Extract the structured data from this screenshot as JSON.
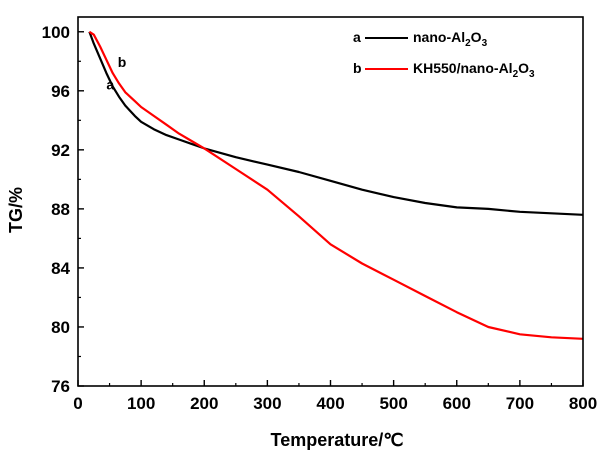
{
  "chart_data": {
    "type": "line",
    "xlabel": "Temperature/℃",
    "ylabel": "TG/%",
    "xlim": [
      0,
      800
    ],
    "ylim": [
      76,
      101
    ],
    "xticks": [
      "0",
      "100",
      "200",
      "300",
      "400",
      "500",
      "600",
      "700",
      "800"
    ],
    "yticks": [
      "76",
      "80",
      "84",
      "88",
      "92",
      "96",
      "100"
    ],
    "grid": false,
    "legend_position": "top-right",
    "series": [
      {
        "name": "nano-Al2O3",
        "legend_marker": "a",
        "legend_text": "nano-Al",
        "legend_sub1": "2",
        "legend_mid": "O",
        "legend_sub2": "3",
        "color": "#000000",
        "x": [
          18,
          25,
          35,
          45,
          55,
          65,
          75,
          90,
          100,
          120,
          140,
          160,
          180,
          200,
          250,
          300,
          350,
          400,
          450,
          500,
          550,
          600,
          650,
          700,
          750,
          800
        ],
        "y": [
          100,
          99.2,
          98.2,
          97.2,
          96.3,
          95.6,
          95.0,
          94.3,
          93.9,
          93.4,
          93.0,
          92.7,
          92.4,
          92.1,
          91.5,
          91.0,
          90.5,
          89.9,
          89.3,
          88.8,
          88.4,
          88.1,
          88.0,
          87.8,
          87.7,
          87.6
        ]
      },
      {
        "name": "KH550/nano-Al2O3",
        "legend_marker": "b",
        "legend_text": "KH550/nano-Al",
        "legend_sub1": "2",
        "legend_mid": "O",
        "legend_sub2": "3",
        "color": "#ff0000",
        "x": [
          18,
          25,
          35,
          45,
          55,
          65,
          75,
          90,
          100,
          120,
          140,
          160,
          180,
          200,
          250,
          300,
          350,
          400,
          450,
          500,
          550,
          600,
          650,
          700,
          750,
          800
        ],
        "y": [
          100,
          99.8,
          99.0,
          98.1,
          97.2,
          96.5,
          95.9,
          95.3,
          94.9,
          94.3,
          93.7,
          93.1,
          92.6,
          92.1,
          90.7,
          89.3,
          87.5,
          85.6,
          84.3,
          83.2,
          82.1,
          81.0,
          80.0,
          79.5,
          79.3,
          79.2
        ]
      }
    ],
    "annotations": [
      {
        "text": "a",
        "x": 45,
        "y": 96.1
      },
      {
        "text": "b",
        "x": 63,
        "y": 97.6
      }
    ]
  }
}
